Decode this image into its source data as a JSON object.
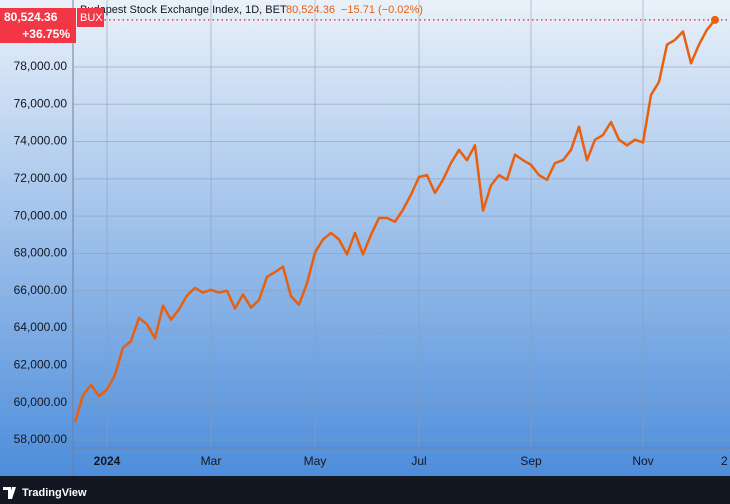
{
  "chart_data": {
    "type": "line",
    "legend_text": {
      "name": "Budapest Stock Exchange Index, 1D, BET",
      "price": "80,524.36",
      "change": "−15.71 (−0.02%)"
    },
    "price_box": {
      "price": "80,524.36",
      "symbol": "BUX",
      "change": "+36.75%"
    },
    "footer": "TradingView",
    "categories": [
      null,
      null,
      null,
      null,
      "2024",
      null,
      null,
      null,
      null,
      null,
      null,
      null,
      null,
      null,
      null,
      null,
      null,
      "Mar",
      null,
      null,
      null,
      null,
      null,
      null,
      null,
      null,
      null,
      null,
      null,
      null,
      "May",
      null,
      null,
      null,
      null,
      null,
      null,
      null,
      null,
      null,
      null,
      null,
      null,
      "Jul",
      null,
      null,
      null,
      null,
      null,
      null,
      null,
      null,
      null,
      null,
      null,
      null,
      null,
      "Sep",
      null,
      null,
      null,
      null,
      null,
      null,
      null,
      null,
      null,
      null,
      null,
      null,
      null,
      "Nov",
      null,
      null,
      null,
      null,
      null,
      null,
      null,
      null,
      null,
      "2"
    ],
    "series": [
      {
        "name": "BUX",
        "color": "#e8600f",
        "values": [
          58950,
          60400,
          60950,
          60350,
          60700,
          61500,
          62950,
          63300,
          64550,
          64200,
          63450,
          65200,
          64450,
          65000,
          65750,
          66150,
          65900,
          66050,
          65900,
          66000,
          65050,
          65800,
          65100,
          65500,
          66750,
          67000,
          67300,
          65700,
          65250,
          66400,
          68050,
          68750,
          69100,
          68750,
          67950,
          69100,
          67950,
          69000,
          69900,
          69900,
          69700,
          70350,
          71150,
          72100,
          72200,
          71250,
          71950,
          72850,
          73550,
          73000,
          73800,
          70300,
          71650,
          72200,
          71950,
          73300,
          73000,
          72750,
          72200,
          71950,
          72850,
          73000,
          73550,
          74800,
          73000,
          74100,
          74350,
          75050,
          74100,
          73800,
          74100,
          73950,
          76500,
          77200,
          79200,
          79450,
          79900,
          78200,
          79200,
          80000,
          80524.36,
          null
        ]
      }
    ],
    "ylim": [
      57570,
      81590
    ],
    "yticks": [
      {
        "value": 58000,
        "label": "58,000.00"
      },
      {
        "value": 60000,
        "label": "60,000.00"
      },
      {
        "value": 62000,
        "label": "62,000.00"
      },
      {
        "value": 64000,
        "label": "64,000.00"
      },
      {
        "value": 66000,
        "label": "66,000.00"
      },
      {
        "value": 68000,
        "label": "68,000.00"
      },
      {
        "value": 70000,
        "label": "70,000.00"
      },
      {
        "value": 72000,
        "label": "72,000.00"
      },
      {
        "value": 74000,
        "label": "74,000.00"
      },
      {
        "value": 76000,
        "label": "76,000.00"
      },
      {
        "value": 78000,
        "label": "78,000.00"
      }
    ],
    "grid": true,
    "last_price_line": true,
    "last_price_color": "#f23645"
  }
}
